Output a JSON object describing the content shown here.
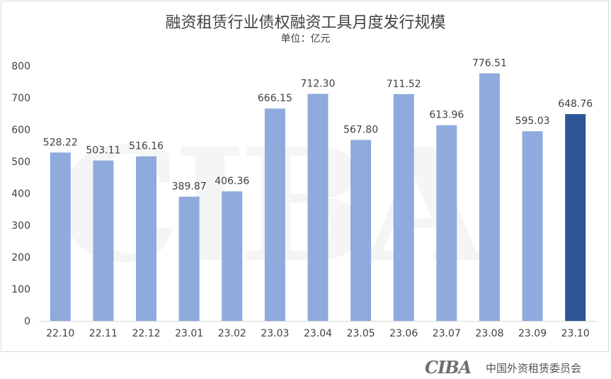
{
  "chart_data": {
    "type": "bar",
    "title": "融资租赁行业债权融资工具月度发行规模",
    "subtitle": "单位：亿元",
    "categories": [
      "22.10",
      "22.11",
      "22.12",
      "23.01",
      "23.02",
      "23.03",
      "23.04",
      "23.05",
      "23.06",
      "23.07",
      "23.08",
      "23.09",
      "23.10"
    ],
    "values": [
      528.22,
      503.11,
      516.16,
      389.87,
      406.36,
      666.15,
      712.3,
      567.8,
      711.52,
      613.96,
      776.51,
      595.03,
      648.76
    ],
    "value_labels": [
      "528.22",
      "503.11",
      "516.16",
      "389.87",
      "406.36",
      "666.15",
      "712.30",
      "567.80",
      "711.52",
      "613.96",
      "776.51",
      "595.03",
      "648.76"
    ],
    "ylim": [
      0,
      800
    ],
    "yticks": [
      0,
      100,
      200,
      300,
      400,
      500,
      600,
      700,
      800
    ],
    "colors": {
      "bar": "#8faadc",
      "highlight": "#2f5597"
    },
    "highlight_index": 12,
    "grid": false
  },
  "watermark": "CIBA",
  "footer": {
    "logo": "CIBA",
    "org": "中国外资租赁委员会"
  }
}
